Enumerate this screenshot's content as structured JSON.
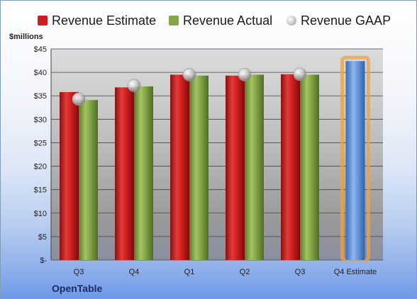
{
  "legend": {
    "estimate": "Revenue Estimate",
    "actual": "Revenue Actual",
    "gaap": "Revenue GAAP"
  },
  "unit_label": "$millions",
  "company": "OpenTable",
  "colors": {
    "estimate": "#cc1f1f",
    "actual": "#86a64a",
    "gaap": "#b8b8b8",
    "forecast": "#5b8fd6",
    "forecast_glow": "#f0a040"
  },
  "chart_data": {
    "type": "bar",
    "categories": [
      "Q3",
      "Q4",
      "Q1",
      "Q2",
      "Q3",
      "Q4 Estimate"
    ],
    "ylim": [
      0,
      45
    ],
    "yticks": [
      0,
      5,
      10,
      15,
      20,
      25,
      30,
      35,
      40,
      45
    ],
    "ytick_labels": [
      "$-",
      "$5",
      "$10",
      "$15",
      "$20",
      "$25",
      "$30",
      "$35",
      "$40",
      "$45"
    ],
    "series": [
      {
        "name": "Revenue Estimate",
        "values": [
          35.8,
          36.8,
          39.5,
          39.3,
          39.6,
          null
        ]
      },
      {
        "name": "Revenue Actual",
        "values": [
          34.1,
          37.0,
          39.3,
          39.5,
          39.5,
          null
        ]
      },
      {
        "name": "Revenue GAAP",
        "values": [
          34.3,
          37.2,
          39.5,
          39.5,
          39.6,
          null
        ]
      }
    ],
    "forecast": {
      "category_index": 5,
      "value": 42.4
    },
    "grid": true,
    "legend_position": "top"
  }
}
